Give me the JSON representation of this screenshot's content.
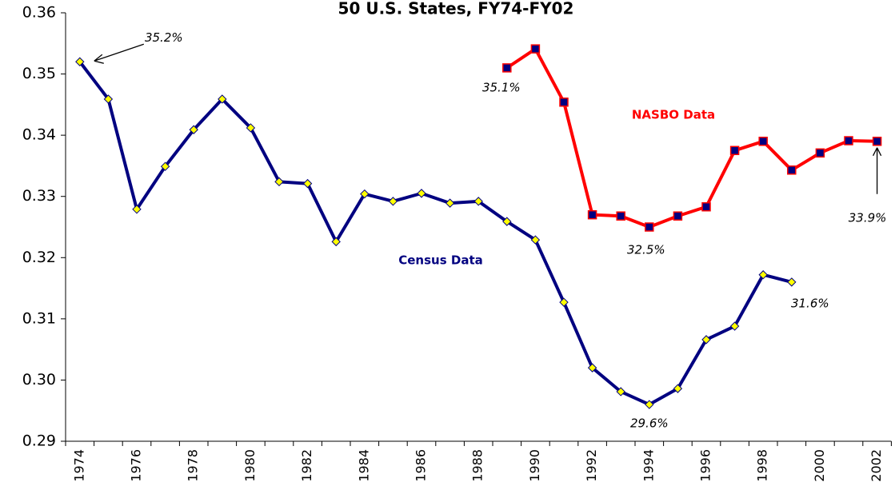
{
  "chart_data": {
    "type": "line",
    "title": "50 U.S. States, FY74-FY02",
    "categories": [
      "1974",
      null,
      "1976",
      null,
      "1978",
      null,
      "1980",
      null,
      "1982",
      null,
      "1984",
      null,
      "1986",
      null,
      "1988",
      null,
      "1990",
      null,
      "1992",
      null,
      "1994",
      null,
      "1996",
      null,
      "1998",
      null,
      "2000",
      null,
      "2002"
    ],
    "series": [
      {
        "name": "Census Data",
        "color": "#000080",
        "marker_color": "#ffff00",
        "values": [
          0.352,
          0.3459,
          0.3279,
          0.3349,
          0.3409,
          0.3459,
          0.3412,
          0.3324,
          0.3321,
          0.3226,
          0.3304,
          0.3292,
          0.3305,
          0.3289,
          0.3292,
          0.3259,
          0.3229,
          0.3127,
          0.302,
          0.2981,
          0.296,
          0.2986,
          0.3066,
          0.3088,
          0.3172,
          0.316,
          null,
          null,
          null
        ],
        "value_labels": [
          "35.2%",
          null,
          null,
          null,
          null,
          null,
          null,
          null,
          null,
          null,
          null,
          null,
          null,
          null,
          null,
          null,
          null,
          null,
          null,
          null,
          "29.6%",
          null,
          null,
          null,
          null,
          "31.6%",
          null,
          null,
          null
        ]
      },
      {
        "name": "NASBO Data",
        "color": "#ff0000",
        "marker_color": "#000080",
        "values": [
          null,
          null,
          null,
          null,
          null,
          null,
          null,
          null,
          null,
          null,
          null,
          null,
          null,
          null,
          null,
          0.351,
          0.3541,
          0.3454,
          0.327,
          0.3268,
          0.325,
          0.3268,
          0.3283,
          0.3375,
          0.339,
          0.3343,
          0.3371,
          0.3391,
          0.339
        ],
        "value_labels": [
          null,
          null,
          null,
          null,
          null,
          null,
          null,
          null,
          null,
          null,
          null,
          null,
          null,
          null,
          null,
          "35.1%",
          null,
          null,
          null,
          null,
          "32.5%",
          null,
          null,
          null,
          null,
          null,
          null,
          null,
          "33.9%"
        ]
      }
    ],
    "ylim": [
      0.29,
      0.36
    ],
    "yticks": [
      0.29,
      {
        "value": 0.3,
        "label": "0.30"
      },
      0.31,
      0.32,
      0.33,
      0.34,
      0.35,
      0.36
    ],
    "grid": false
  }
}
